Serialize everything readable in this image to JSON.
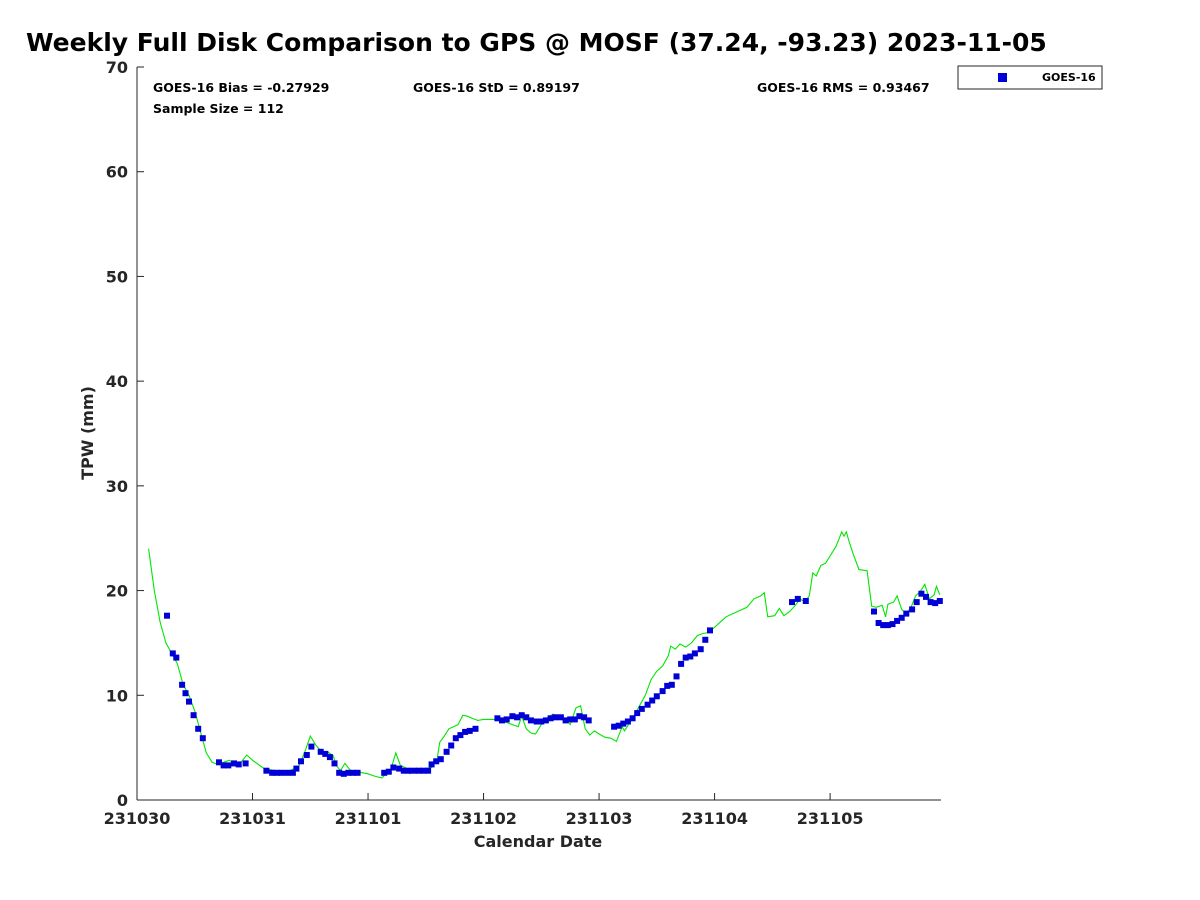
{
  "title": "Weekly Full Disk Comparison to GPS @ MOSF (37.24, -93.23) 2023-11-05",
  "stats": {
    "bias": "GOES-16 Bias = -0.27929",
    "std": "GOES-16 StD = 0.89197",
    "rms": "GOES-16 RMS = 0.93467",
    "sample": "Sample Size = 112"
  },
  "colors": {
    "goes": "#0000d6",
    "gps": "#00e600",
    "axis": "#262626"
  },
  "chart_data": {
    "type": "scatter",
    "title": "Weekly Full Disk Comparison to GPS @ MOSF (37.24, -93.23) 2023-11-05",
    "xlabel": "Calendar Date",
    "ylabel": "TPW (mm)",
    "xlim": [
      0,
      6.96
    ],
    "ylim": [
      0,
      70
    ],
    "x_unit": "days",
    "yticks": [
      0,
      10,
      20,
      30,
      40,
      50,
      60,
      70
    ],
    "xticks": [
      {
        "x": 0,
        "label": "231030"
      },
      {
        "x": 1,
        "label": "231031"
      },
      {
        "x": 2,
        "label": "231101"
      },
      {
        "x": 3,
        "label": "231102"
      },
      {
        "x": 4,
        "label": "231103"
      },
      {
        "x": 5,
        "label": "231104"
      },
      {
        "x": 6,
        "label": "231105"
      }
    ],
    "legend": {
      "placement": "outside-top-right",
      "entries": [
        "GOES-16"
      ]
    },
    "series": [
      {
        "name": "GOES-16",
        "kind": "markers",
        "points": [
          [
            0.26,
            17.6
          ],
          [
            0.31,
            14.0
          ],
          [
            0.34,
            13.6
          ],
          [
            0.39,
            11.0
          ],
          [
            0.42,
            10.2
          ],
          [
            0.45,
            9.4
          ],
          [
            0.49,
            8.1
          ],
          [
            0.53,
            6.8
          ],
          [
            0.57,
            5.9
          ],
          [
            0.71,
            3.6
          ],
          [
            0.75,
            3.3
          ],
          [
            0.79,
            3.3
          ],
          [
            0.84,
            3.5
          ],
          [
            0.88,
            3.4
          ],
          [
            0.94,
            3.5
          ],
          [
            1.12,
            2.8
          ],
          [
            1.17,
            2.6
          ],
          [
            1.21,
            2.6
          ],
          [
            1.25,
            2.6
          ],
          [
            1.3,
            2.6
          ],
          [
            1.35,
            2.6
          ],
          [
            1.38,
            3.0
          ],
          [
            1.42,
            3.7
          ],
          [
            1.47,
            4.3
          ],
          [
            1.51,
            5.1
          ],
          [
            1.59,
            4.6
          ],
          [
            1.63,
            4.4
          ],
          [
            1.67,
            4.1
          ],
          [
            1.71,
            3.5
          ],
          [
            1.75,
            2.6
          ],
          [
            1.79,
            2.5
          ],
          [
            1.83,
            2.6
          ],
          [
            1.87,
            2.6
          ],
          [
            1.91,
            2.6
          ],
          [
            2.14,
            2.6
          ],
          [
            2.18,
            2.7
          ],
          [
            2.22,
            3.1
          ],
          [
            2.27,
            3.0
          ],
          [
            2.31,
            2.8
          ],
          [
            2.35,
            2.8
          ],
          [
            2.4,
            2.8
          ],
          [
            2.44,
            2.8
          ],
          [
            2.48,
            2.8
          ],
          [
            2.52,
            2.8
          ],
          [
            2.55,
            3.4
          ],
          [
            2.59,
            3.7
          ],
          [
            2.63,
            3.9
          ],
          [
            2.68,
            4.6
          ],
          [
            2.72,
            5.2
          ],
          [
            2.76,
            5.9
          ],
          [
            2.8,
            6.2
          ],
          [
            2.84,
            6.5
          ],
          [
            2.88,
            6.6
          ],
          [
            2.93,
            6.8
          ],
          [
            3.12,
            7.8
          ],
          [
            3.16,
            7.6
          ],
          [
            3.2,
            7.7
          ],
          [
            3.25,
            8.0
          ],
          [
            3.29,
            7.9
          ],
          [
            3.33,
            8.1
          ],
          [
            3.37,
            7.9
          ],
          [
            3.41,
            7.6
          ],
          [
            3.46,
            7.5
          ],
          [
            3.5,
            7.5
          ],
          [
            3.54,
            7.6
          ],
          [
            3.58,
            7.8
          ],
          [
            3.62,
            7.9
          ],
          [
            3.67,
            7.9
          ],
          [
            3.71,
            7.6
          ],
          [
            3.75,
            7.7
          ],
          [
            3.79,
            7.7
          ],
          [
            3.83,
            8.0
          ],
          [
            3.87,
            7.9
          ],
          [
            3.91,
            7.6
          ],
          [
            4.13,
            7.0
          ],
          [
            4.17,
            7.1
          ],
          [
            4.21,
            7.3
          ],
          [
            4.25,
            7.5
          ],
          [
            4.29,
            7.8
          ],
          [
            4.33,
            8.3
          ],
          [
            4.37,
            8.7
          ],
          [
            4.42,
            9.1
          ],
          [
            4.46,
            9.5
          ],
          [
            4.5,
            9.9
          ],
          [
            4.55,
            10.4
          ],
          [
            4.59,
            10.9
          ],
          [
            4.63,
            11.0
          ],
          [
            4.67,
            11.8
          ],
          [
            4.71,
            13.0
          ],
          [
            4.75,
            13.6
          ],
          [
            4.79,
            13.7
          ],
          [
            4.83,
            14.0
          ],
          [
            4.88,
            14.4
          ],
          [
            4.92,
            15.3
          ],
          [
            4.96,
            16.2
          ],
          [
            5.67,
            18.9
          ],
          [
            5.72,
            19.2
          ],
          [
            5.79,
            19.0
          ],
          [
            6.38,
            18.0
          ],
          [
            6.42,
            16.9
          ],
          [
            6.46,
            16.7
          ],
          [
            6.5,
            16.7
          ],
          [
            6.54,
            16.8
          ],
          [
            6.58,
            17.1
          ],
          [
            6.62,
            17.4
          ],
          [
            6.66,
            17.8
          ],
          [
            6.71,
            18.2
          ],
          [
            6.75,
            18.9
          ],
          [
            6.79,
            19.7
          ],
          [
            6.83,
            19.4
          ],
          [
            6.87,
            18.9
          ],
          [
            6.91,
            18.8
          ],
          [
            6.95,
            19.0
          ]
        ]
      },
      {
        "name": "",
        "kind": "line",
        "points": [
          [
            0.1,
            24.0
          ],
          [
            0.15,
            20.0
          ],
          [
            0.2,
            17.0
          ],
          [
            0.25,
            15.0
          ],
          [
            0.3,
            14.0
          ],
          [
            0.35,
            13.0
          ],
          [
            0.4,
            11.0
          ],
          [
            0.45,
            10.0
          ],
          [
            0.5,
            8.5
          ],
          [
            0.55,
            6.5
          ],
          [
            0.6,
            4.5
          ],
          [
            0.65,
            3.6
          ],
          [
            0.7,
            3.4
          ],
          [
            0.75,
            3.6
          ],
          [
            0.8,
            3.8
          ],
          [
            0.85,
            3.4
          ],
          [
            0.9,
            3.6
          ],
          [
            0.95,
            4.3
          ],
          [
            1.0,
            3.8
          ],
          [
            1.1,
            3.0
          ],
          [
            1.2,
            2.8
          ],
          [
            1.3,
            2.7
          ],
          [
            1.4,
            3.2
          ],
          [
            1.45,
            4.5
          ],
          [
            1.5,
            6.1
          ],
          [
            1.55,
            5.2
          ],
          [
            1.6,
            4.6
          ],
          [
            1.65,
            4.6
          ],
          [
            1.7,
            4.2
          ],
          [
            1.72,
            3.4
          ],
          [
            1.76,
            2.8
          ],
          [
            1.8,
            3.5
          ],
          [
            1.85,
            2.8
          ],
          [
            2.0,
            2.5
          ],
          [
            2.05,
            2.3
          ],
          [
            2.12,
            2.1
          ],
          [
            2.2,
            3.0
          ],
          [
            2.24,
            4.5
          ],
          [
            2.28,
            3.3
          ],
          [
            2.32,
            3.1
          ],
          [
            2.36,
            2.5
          ],
          [
            2.4,
            2.8
          ],
          [
            2.45,
            3.0
          ],
          [
            2.5,
            3.0
          ],
          [
            2.55,
            3.1
          ],
          [
            2.6,
            4.0
          ],
          [
            2.62,
            5.5
          ],
          [
            2.66,
            6.1
          ],
          [
            2.7,
            6.8
          ],
          [
            2.74,
            7.0
          ],
          [
            2.78,
            7.2
          ],
          [
            2.82,
            8.1
          ],
          [
            2.86,
            8.0
          ],
          [
            2.9,
            7.8
          ],
          [
            2.95,
            7.6
          ],
          [
            3.0,
            7.7
          ],
          [
            3.1,
            7.7
          ],
          [
            3.15,
            7.5
          ],
          [
            3.2,
            7.4
          ],
          [
            3.25,
            7.2
          ],
          [
            3.3,
            7.0
          ],
          [
            3.33,
            8.0
          ],
          [
            3.37,
            6.8
          ],
          [
            3.41,
            6.4
          ],
          [
            3.45,
            6.3
          ],
          [
            3.5,
            7.2
          ],
          [
            3.55,
            7.8
          ],
          [
            3.6,
            8.2
          ],
          [
            3.65,
            8.0
          ],
          [
            3.7,
            7.8
          ],
          [
            3.75,
            7.2
          ],
          [
            3.8,
            8.8
          ],
          [
            3.84,
            9.0
          ],
          [
            3.88,
            6.8
          ],
          [
            3.92,
            6.2
          ],
          [
            3.96,
            6.6
          ],
          [
            4.0,
            6.3
          ],
          [
            4.05,
            6.0
          ],
          [
            4.1,
            5.9
          ],
          [
            4.15,
            5.6
          ],
          [
            4.2,
            7.0
          ],
          [
            4.22,
            6.6
          ],
          [
            4.26,
            7.3
          ],
          [
            4.3,
            8.0
          ],
          [
            4.35,
            9.0
          ],
          [
            4.4,
            10.0
          ],
          [
            4.45,
            11.5
          ],
          [
            4.5,
            12.3
          ],
          [
            4.55,
            12.8
          ],
          [
            4.6,
            13.8
          ],
          [
            4.62,
            14.7
          ],
          [
            4.66,
            14.4
          ],
          [
            4.7,
            14.9
          ],
          [
            4.75,
            14.6
          ],
          [
            4.8,
            15.0
          ],
          [
            4.85,
            15.7
          ],
          [
            4.9,
            15.9
          ],
          [
            4.95,
            16.0
          ],
          [
            5.0,
            16.5
          ],
          [
            5.1,
            17.5
          ],
          [
            5.2,
            18.0
          ],
          [
            5.28,
            18.4
          ],
          [
            5.34,
            19.2
          ],
          [
            5.4,
            19.5
          ],
          [
            5.43,
            19.8
          ],
          [
            5.46,
            17.5
          ],
          [
            5.52,
            17.6
          ],
          [
            5.56,
            18.3
          ],
          [
            5.6,
            17.6
          ],
          [
            5.65,
            18.0
          ],
          [
            5.7,
            18.6
          ],
          [
            5.74,
            19.2
          ],
          [
            5.78,
            18.9
          ],
          [
            5.82,
            19.5
          ],
          [
            5.85,
            21.7
          ],
          [
            5.88,
            21.4
          ],
          [
            5.92,
            22.4
          ],
          [
            5.96,
            22.6
          ],
          [
            6.0,
            23.3
          ],
          [
            6.05,
            24.2
          ],
          [
            6.08,
            25.0
          ],
          [
            6.1,
            25.6
          ],
          [
            6.12,
            25.2
          ],
          [
            6.14,
            25.6
          ],
          [
            6.17,
            24.5
          ],
          [
            6.2,
            23.5
          ],
          [
            6.25,
            22.0
          ],
          [
            6.32,
            21.9
          ],
          [
            6.36,
            18.5
          ],
          [
            6.4,
            18.4
          ],
          [
            6.45,
            18.6
          ],
          [
            6.48,
            17.5
          ],
          [
            6.5,
            18.7
          ],
          [
            6.55,
            18.9
          ],
          [
            6.58,
            19.5
          ],
          [
            6.62,
            18.2
          ],
          [
            6.66,
            17.8
          ],
          [
            6.7,
            18.4
          ],
          [
            6.74,
            19.5
          ],
          [
            6.78,
            19.9
          ],
          [
            6.82,
            20.6
          ],
          [
            6.86,
            19.2
          ],
          [
            6.9,
            19.6
          ],
          [
            6.92,
            20.4
          ],
          [
            6.95,
            19.6
          ]
        ]
      }
    ]
  }
}
